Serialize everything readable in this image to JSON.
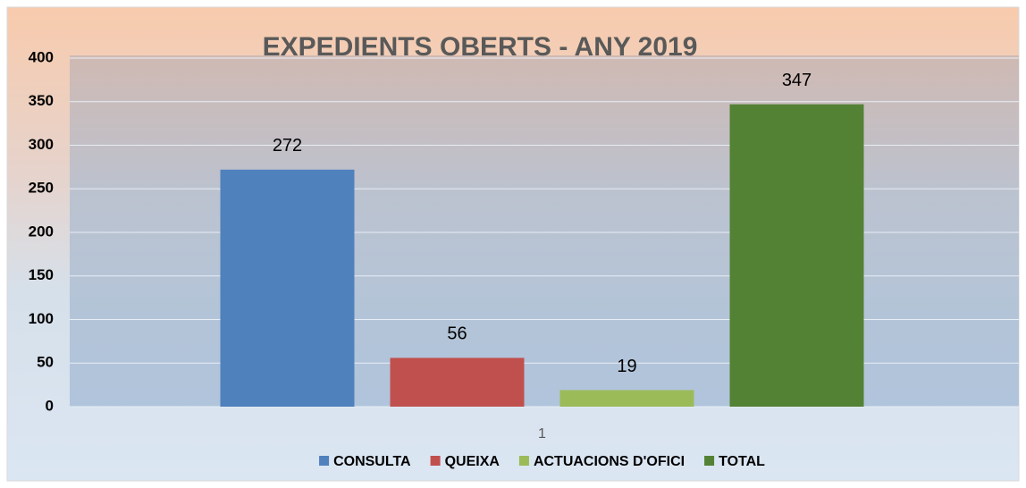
{
  "chart_data": {
    "type": "bar",
    "title": "EXPEDIENTS OBERTS - ANY 2019",
    "categories": [
      "1"
    ],
    "series": [
      {
        "name": "CONSULTA",
        "color": "#4f81bd",
        "values": [
          272
        ]
      },
      {
        "name": "QUEIXA",
        "color": "#c0504d",
        "values": [
          56
        ]
      },
      {
        "name": "ACTUACIONS D'OFICI",
        "color": "#9bbb59",
        "values": [
          19
        ]
      },
      {
        "name": "TOTAL",
        "color": "#548235",
        "values": [
          347
        ]
      }
    ],
    "ylim": [
      0,
      400
    ],
    "yticks": [
      0,
      50,
      100,
      150,
      200,
      250,
      300,
      350,
      400
    ],
    "grid": true,
    "legend": "bottom"
  }
}
